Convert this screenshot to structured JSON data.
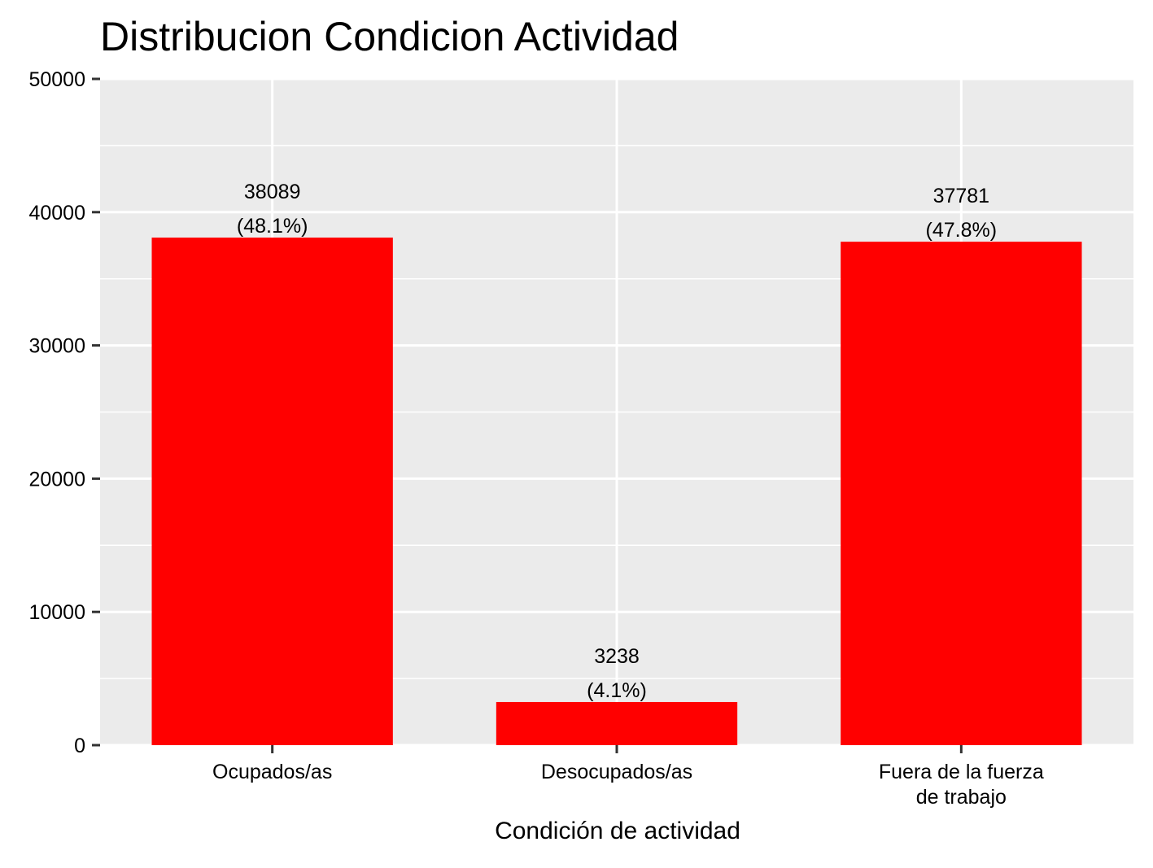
{
  "chart_data": {
    "type": "bar",
    "title": "Distribucion Condicion Actividad",
    "xlabel": "Condición de actividad",
    "ylabel": "",
    "categories": [
      [
        "Ocupados/as"
      ],
      [
        "Desocupados/as"
      ],
      [
        "Fuera de la fuerza",
        "de trabajo"
      ]
    ],
    "values": [
      38089,
      3238,
      37781
    ],
    "value_labels": [
      "38089",
      "3238",
      "37781"
    ],
    "percent_labels": [
      "(48.1%)",
      "(4.1%)",
      "(47.8%)"
    ],
    "ylim": [
      0,
      50000
    ],
    "y_ticks": [
      0,
      10000,
      20000,
      30000,
      40000,
      50000
    ],
    "y_tick_labels": [
      "0",
      "10000",
      "20000",
      "30000",
      "40000",
      "50000"
    ],
    "grid": true,
    "legend": "none",
    "colors": {
      "bar": "#ff0000",
      "panel": "#ebebeb",
      "grid": "#ffffff",
      "text": "#000000",
      "axis_text": "#1a1a1a"
    }
  }
}
